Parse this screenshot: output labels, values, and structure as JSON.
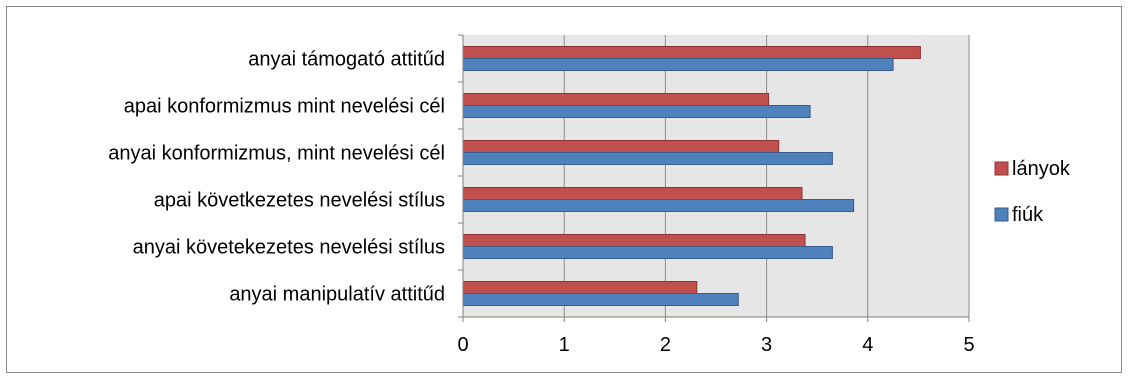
{
  "chart_data": {
    "type": "bar",
    "orientation": "horizontal",
    "categories": [
      "anyai támogató attitűd",
      "apai konformizmus mint nevelési cél",
      "anyai konformizmus, mint nevelési cél",
      "apai következetes nevelési stílus",
      "anyai követekezetes nevelési stílus",
      "anyai manipulatív attitűd"
    ],
    "series": [
      {
        "name": "lányok",
        "color": "#c0504d",
        "values": [
          4.52,
          3.02,
          3.12,
          3.35,
          3.38,
          2.31
        ]
      },
      {
        "name": "fiúk",
        "color": "#4f81bd",
        "values": [
          4.25,
          3.43,
          3.65,
          3.86,
          3.65,
          2.72
        ]
      }
    ],
    "xlim": [
      0,
      5
    ],
    "xticks": [
      "0",
      "1",
      "2",
      "3",
      "4",
      "5"
    ],
    "grid": true,
    "legend_position": "right",
    "plot_background": "#e6e6e6",
    "gridline_color": "#8c8c8c"
  }
}
